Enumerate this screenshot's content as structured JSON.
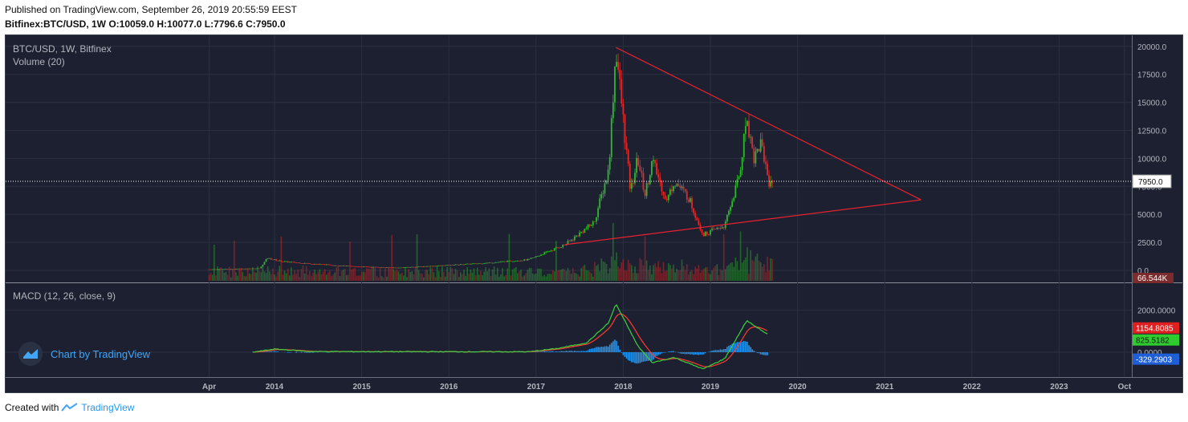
{
  "header": {
    "published": "Published on TradingView.com, September 26, 2019 20:55:59 EEST",
    "symbol": "Bitfinex:BTC/USD, 1W",
    "ohlc": "O:10059.0 H:10077.0 L:7796.6 C:7950.0"
  },
  "legend": {
    "main": "BTC/USD, 1W, Bitfinex",
    "volume": "Volume (20)",
    "macd": "MACD (12, 26, close, 9)"
  },
  "watermark": "Chart by TradingView",
  "footer": {
    "prefix": "Created with",
    "brand": "TradingView"
  },
  "colors": {
    "up": "#2db82d",
    "down": "#e02b2b",
    "trend": "#e8222e",
    "macd": "#2196f3",
    "signal": "#ff3b30",
    "macd_line": "#3cd13c",
    "background": "#1c2030"
  },
  "chart_data": [
    {
      "type": "candlestick",
      "title": "BTC/USD, 1W, Bitfinex",
      "x_tick_labels": [
        "Apr",
        "2014",
        "2015",
        "2016",
        "2017",
        "2018",
        "2019",
        "2020",
        "2021",
        "2022",
        "2023",
        "Oct"
      ],
      "y_tick_labels": [
        "0.0",
        "2500.0",
        "5000.0",
        "7500.0",
        "10000.0",
        "12500.0",
        "15000.0",
        "17500.0",
        "20000.0"
      ],
      "ylim": [
        0,
        20000
      ],
      "last_price": "7950.0",
      "price_path": [
        {
          "date": "2013-04",
          "price": 100
        },
        {
          "date": "2013-11",
          "price": 180
        },
        {
          "date": "2013-12",
          "price": 1100
        },
        {
          "date": "2014-02",
          "price": 800
        },
        {
          "date": "2014-06",
          "price": 600
        },
        {
          "date": "2014-12",
          "price": 350
        },
        {
          "date": "2015-06",
          "price": 240
        },
        {
          "date": "2015-12",
          "price": 430
        },
        {
          "date": "2016-06",
          "price": 650
        },
        {
          "date": "2016-12",
          "price": 960
        },
        {
          "date": "2017-05",
          "price": 2300
        },
        {
          "date": "2017-09",
          "price": 4300
        },
        {
          "date": "2017-11",
          "price": 9000
        },
        {
          "date": "2017-12",
          "price": 19900
        },
        {
          "date": "2018-02",
          "price": 7000
        },
        {
          "date": "2018-03",
          "price": 10000
        },
        {
          "date": "2018-04",
          "price": 6800
        },
        {
          "date": "2018-05",
          "price": 9800
        },
        {
          "date": "2018-07",
          "price": 6200
        },
        {
          "date": "2018-08",
          "price": 8000
        },
        {
          "date": "2018-10",
          "price": 6500
        },
        {
          "date": "2018-12",
          "price": 3200
        },
        {
          "date": "2019-03",
          "price": 4000
        },
        {
          "date": "2019-05",
          "price": 8500
        },
        {
          "date": "2019-06",
          "price": 13800
        },
        {
          "date": "2019-07",
          "price": 10000
        },
        {
          "date": "2019-08",
          "price": 11500
        },
        {
          "date": "2019-09",
          "price": 7950
        }
      ],
      "trendlines": [
        {
          "from": {
            "date": "2017-12",
            "price": 19900
          },
          "to": {
            "date": "2021-06",
            "price": 6300
          }
        },
        {
          "from": {
            "date": "2017-05",
            "price": 2300
          },
          "to": {
            "date": "2021-06",
            "price": 6300
          }
        }
      ]
    },
    {
      "type": "bar",
      "title": "Volume (20)",
      "last_value_label": "66.544K"
    },
    {
      "type": "line",
      "title": "MACD (12, 26, close, 9)",
      "y_tick_labels": [
        "0.0000",
        "2000.0000"
      ],
      "ylim": [
        -1000,
        2600
      ],
      "last_values": {
        "signal": "1154.8085",
        "macd": "825.5182",
        "histogram": "-329.2903"
      },
      "macd_path": [
        {
          "date": "2013-10",
          "price": 0
        },
        {
          "date": "2014-01",
          "price": 150
        },
        {
          "date": "2014-06",
          "price": 30
        },
        {
          "date": "2016-12",
          "price": 20
        },
        {
          "date": "2017-04",
          "price": 180
        },
        {
          "date": "2017-08",
          "price": 450
        },
        {
          "date": "2017-11",
          "price": 1400
        },
        {
          "date": "2017-12",
          "price": 2300
        },
        {
          "date": "2018-03",
          "price": 300
        },
        {
          "date": "2018-05",
          "price": -500
        },
        {
          "date": "2018-08",
          "price": -250
        },
        {
          "date": "2018-12",
          "price": -800
        },
        {
          "date": "2019-03",
          "price": -300
        },
        {
          "date": "2019-06",
          "price": 1500
        },
        {
          "date": "2019-09",
          "price": 825
        }
      ]
    }
  ]
}
